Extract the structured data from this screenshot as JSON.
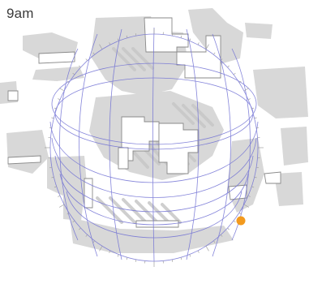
{
  "scene": {
    "time_label": "9am",
    "colors": {
      "background": "#ffffff",
      "building_shadow": "#d6d6d6",
      "shadow_dark": "#c9c9c9",
      "roof": "#ffffff",
      "roof_outline": "#8a8a8a",
      "sun_path": "#6f6fd6",
      "sun": "#f39a1e",
      "ticks": "#9a9a9a"
    },
    "icons": {
      "sun": "sun-position-marker"
    }
  }
}
